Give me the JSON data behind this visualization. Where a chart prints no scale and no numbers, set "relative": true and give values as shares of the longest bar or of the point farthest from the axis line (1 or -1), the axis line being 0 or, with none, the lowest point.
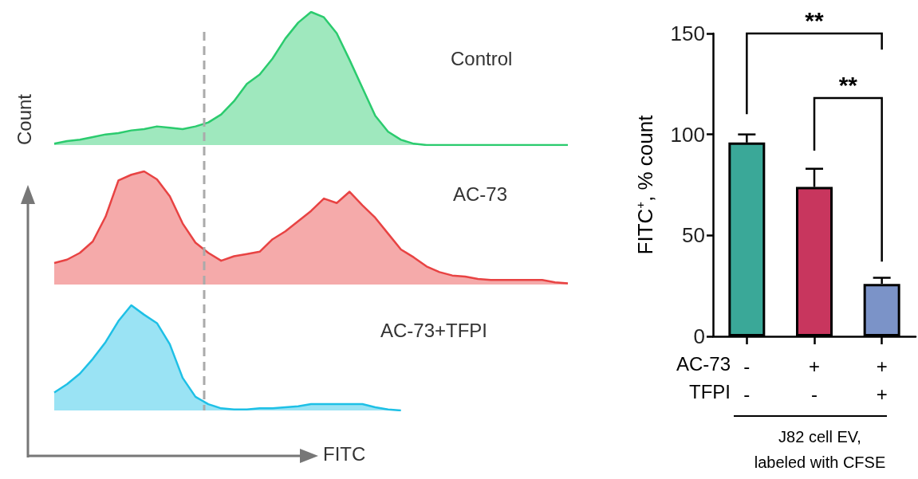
{
  "chart_data": [
    {
      "type": "area",
      "title": "Control",
      "ylabel": "Count",
      "relative": true,
      "color": "#2bcb6e",
      "categories": [
        null,
        null,
        null,
        null,
        null,
        null,
        null,
        null,
        null,
        null,
        null,
        null,
        null,
        null,
        null,
        null,
        null,
        null,
        null,
        null,
        null,
        null,
        null,
        null,
        null,
        null,
        null,
        null,
        null,
        null,
        null,
        null,
        null,
        null,
        null,
        null,
        null,
        null,
        null,
        null,
        null
      ],
      "values": [
        0.01,
        0.03,
        0.04,
        0.06,
        0.08,
        0.09,
        0.11,
        0.12,
        0.14,
        0.13,
        0.12,
        0.14,
        0.17,
        0.23,
        0.33,
        0.46,
        0.53,
        0.65,
        0.8,
        0.92,
        1.0,
        0.96,
        0.84,
        0.64,
        0.43,
        0.22,
        0.1,
        0.04,
        0.01,
        0,
        0,
        0,
        0,
        0,
        0,
        0,
        0,
        0,
        0,
        0,
        0
      ]
    },
    {
      "type": "area",
      "title": "AC-73",
      "relative": true,
      "color": "#e84343",
      "categories": [
        null,
        null,
        null,
        null,
        null,
        null,
        null,
        null,
        null,
        null,
        null,
        null,
        null,
        null,
        null,
        null,
        null,
        null,
        null,
        null,
        null,
        null,
        null,
        null,
        null,
        null,
        null,
        null,
        null,
        null,
        null,
        null,
        null,
        null,
        null,
        null,
        null,
        null,
        null,
        null,
        null
      ],
      "values": [
        0.19,
        0.22,
        0.28,
        0.38,
        0.6,
        0.92,
        0.97,
        1.0,
        0.93,
        0.78,
        0.54,
        0.37,
        0.28,
        0.21,
        0.25,
        0.27,
        0.29,
        0.4,
        0.47,
        0.56,
        0.65,
        0.76,
        0.72,
        0.82,
        0.7,
        0.59,
        0.45,
        0.31,
        0.24,
        0.16,
        0.11,
        0.08,
        0.07,
        0.05,
        0.04,
        0.04,
        0.04,
        0.04,
        0.04,
        0.02,
        0.01
      ]
    },
    {
      "type": "area",
      "title": "AC-73+TFPI",
      "xlabel": "FITC",
      "relative": true,
      "color": "#1ec0e6",
      "categories": [
        null,
        null,
        null,
        null,
        null,
        null,
        null,
        null,
        null,
        null,
        null,
        null,
        null,
        null,
        null,
        null,
        null,
        null,
        null,
        null,
        null,
        null,
        null,
        null,
        null,
        null,
        null,
        null,
        null,
        null,
        null,
        null,
        null,
        null,
        null,
        null,
        null,
        null,
        null,
        null,
        null
      ],
      "values": [
        0.17,
        0.25,
        0.35,
        0.49,
        0.65,
        0.85,
        1.0,
        0.91,
        0.83,
        0.63,
        0.31,
        0.13,
        0.06,
        0.02,
        0.01,
        0.01,
        0.02,
        0.02,
        0.03,
        0.04,
        0.06,
        0.06,
        0.06,
        0.06,
        0.06,
        0.03,
        0.01,
        0,
        null,
        null,
        null,
        null,
        null,
        null,
        null,
        null,
        null,
        null,
        null,
        null,
        null
      ]
    },
    {
      "type": "bar",
      "categories": [
        "-\n-",
        "+\n-",
        "+\n+"
      ],
      "values": [
        96,
        74,
        26
      ],
      "colors": [
        "#3aa898",
        "#c8365e",
        "#7b93c8"
      ],
      "errors": [
        [
          96,
          100
        ],
        [
          74,
          83
        ],
        [
          26,
          29
        ]
      ],
      "ylim": [
        0,
        150
      ],
      "yticks": [
        0,
        50,
        100,
        150
      ],
      "ylabel": "FITC$^{+}$, % count",
      "xlabel": "J82 cell EV,\nlabeled with CFSE",
      "annotations": [
        "**",
        "**",
        "AC-73",
        "TFPI"
      ]
    }
  ]
}
